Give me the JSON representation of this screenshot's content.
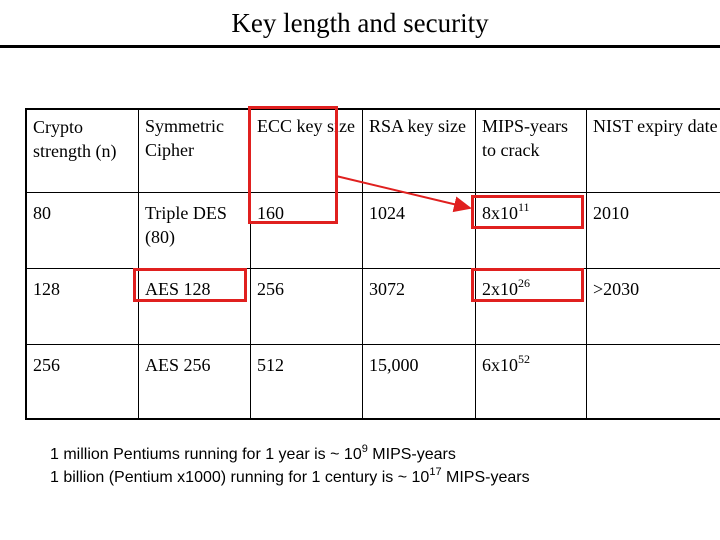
{
  "title": "Key length and security",
  "table": {
    "headers": [
      "Crypto strength (n)",
      "Symmetric Cipher",
      "ECC key size",
      "RSA key size",
      "MIPS-years to crack",
      "NIST expiry date"
    ],
    "rows": [
      {
        "strength": "80",
        "cipher": "Triple DES (80)",
        "ecc": "160",
        "rsa": "1024",
        "mips_base": "8x10",
        "mips_exp": "11",
        "nist": "2010"
      },
      {
        "strength": "128",
        "cipher": "AES 128",
        "ecc": "256",
        "rsa": "3072",
        "mips_base": "2x10",
        "mips_exp": "26",
        "nist": ">2030"
      },
      {
        "strength": "256",
        "cipher": "AES 256",
        "ecc": "512",
        "rsa": "15,000",
        "mips_base": "6x10",
        "mips_exp": "52",
        "nist": ""
      }
    ]
  },
  "notes": [
    {
      "pre": "1 million Pentiums running for 1 year is ~ 10",
      "exp": "9",
      "post": " MIPS-years"
    },
    {
      "pre": "1 billion (Pentium x1000) running for 1 century is ~ 10",
      "exp": "17",
      "post": " MIPS-years"
    }
  ],
  "colors": {
    "highlight": "#e0201f",
    "text": "#000000",
    "background": "#ffffff"
  }
}
